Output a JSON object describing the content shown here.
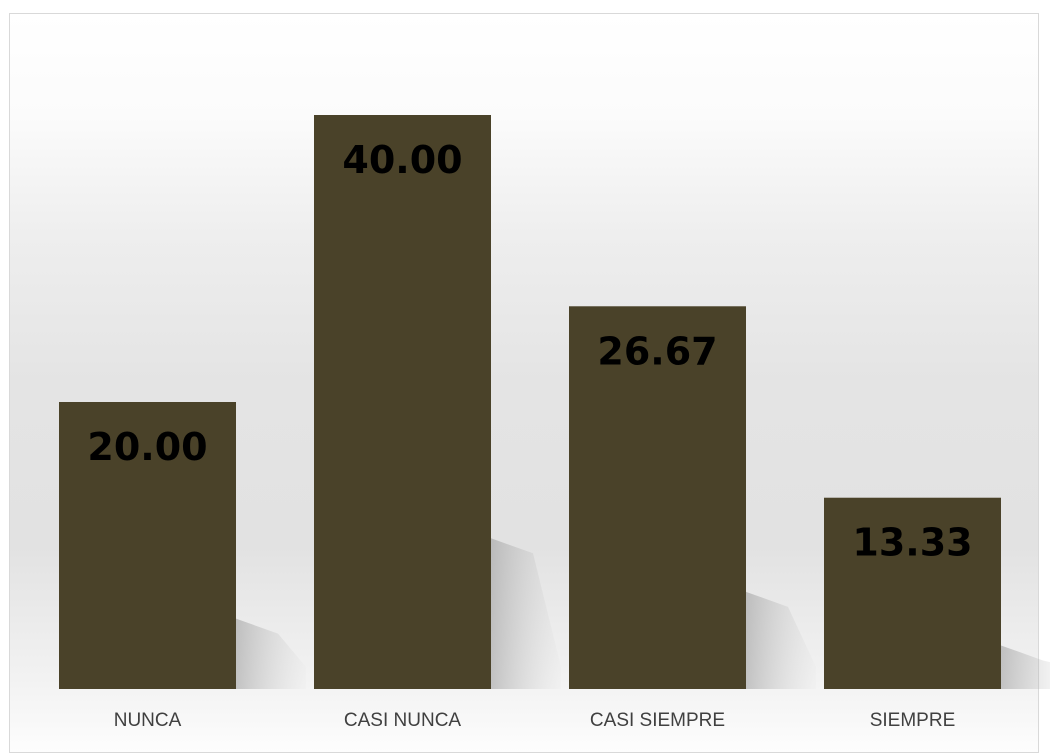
{
  "chart_data": {
    "type": "bar",
    "categories": [
      "NUNCA",
      "CASI NUNCA",
      "CASI SIEMPRE",
      "SIEMPRE"
    ],
    "values": [
      20.0,
      40.0,
      26.67,
      13.33
    ],
    "data_labels": [
      "20.00",
      "40.00",
      "26.67",
      "13.33"
    ],
    "title": "",
    "xlabel": "",
    "ylabel": "",
    "ylim": [
      0,
      40
    ],
    "grid": false,
    "legend": "none",
    "bar_color": "#4a4229",
    "label_color": "#000000",
    "category_label_color": "#404040",
    "shadow": true
  }
}
